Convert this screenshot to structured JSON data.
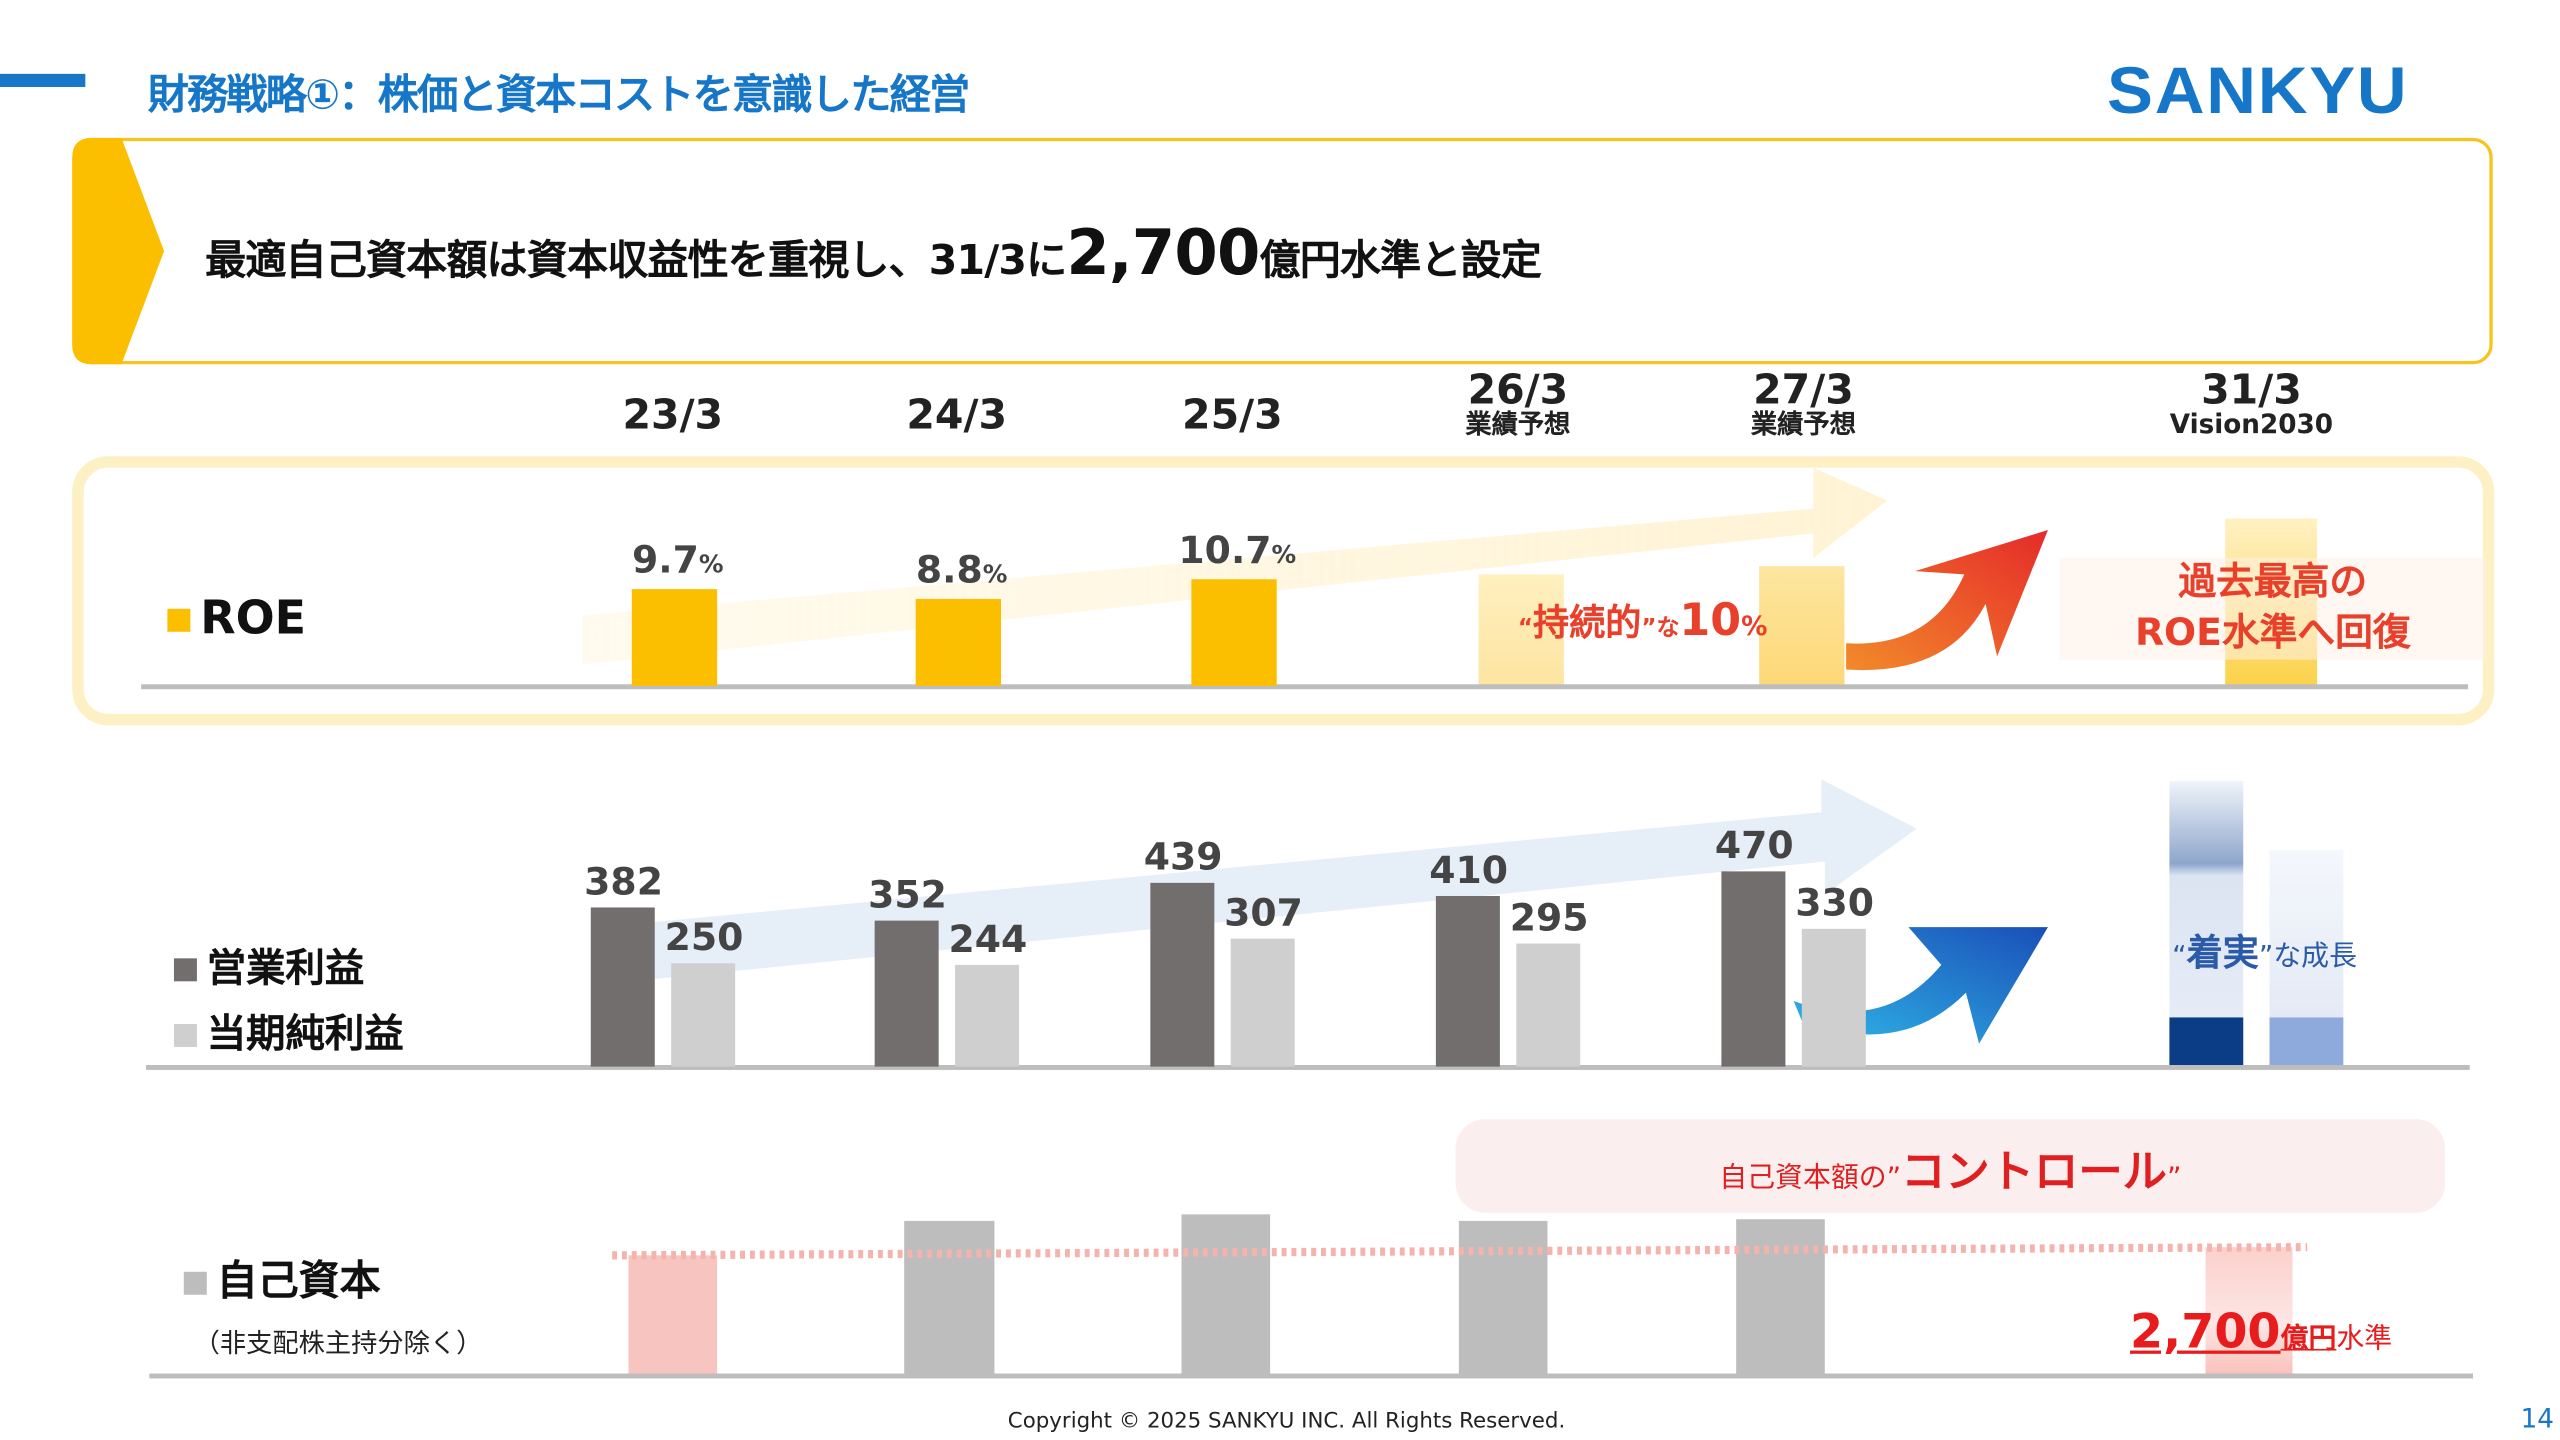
{
  "header": {
    "title": "財務戦略①：株価と資本コストを意識した経営",
    "logo": "SANKYU",
    "brand_color": "#1677c8"
  },
  "banner": {
    "text_before": "最適自己資本額は資本収益性を重視し、31/3に",
    "amount": "2,700",
    "text_after": "億円水準と設定"
  },
  "periods": [
    {
      "label": "23/3",
      "sub": ""
    },
    {
      "label": "24/3",
      "sub": ""
    },
    {
      "label": "25/3",
      "sub": ""
    },
    {
      "label": "26/3",
      "sub": "業績予想"
    },
    {
      "label": "27/3",
      "sub": "業績予想"
    },
    {
      "label": "31/3",
      "sub": "Vision2030"
    }
  ],
  "roe": {
    "legend": "ROE",
    "target_q1": "“",
    "target_word": "持続的",
    "target_q2": "”な",
    "target_value": "10",
    "target_unit": "%",
    "goal_line1": "過去最高の",
    "goal_line2": "ROE水準へ回復"
  },
  "profit": {
    "legend_op": "営業利益",
    "legend_net": "当期純利益",
    "goal_q1": "“",
    "goal_word": "着実",
    "goal_rest": "”な成長"
  },
  "equity": {
    "legend": "自己資本",
    "note": "（非支配株主持分除く）",
    "control_prefix": "自己資本額の”",
    "control_word": "コントロール",
    "control_suffix": "”",
    "target_amount": "2,700",
    "target_unit": "億円",
    "target_suffix": "水準"
  },
  "chart_data": [
    {
      "type": "bar",
      "categories": [
        "23/3",
        "24/3",
        "25/3"
      ],
      "values": [
        9.7,
        8.8,
        10.7
      ],
      "unit": "%",
      "series_name": "ROE",
      "color": "#fbbf00"
    },
    {
      "type": "bar",
      "categories": [
        "23/3",
        "24/3",
        "25/3",
        "26/3",
        "27/3"
      ],
      "series": [
        {
          "name": "営業利益",
          "values": [
            382,
            352,
            439,
            410,
            470
          ],
          "color": "#736e6e"
        },
        {
          "name": "当期純利益",
          "values": [
            250,
            244,
            307,
            295,
            330
          ],
          "color": "#d0cfcf"
        }
      ]
    }
  ],
  "footer": {
    "copyright": "Copyright © 2025 SANKYU INC. All Rights Reserved.",
    "page": "14"
  }
}
